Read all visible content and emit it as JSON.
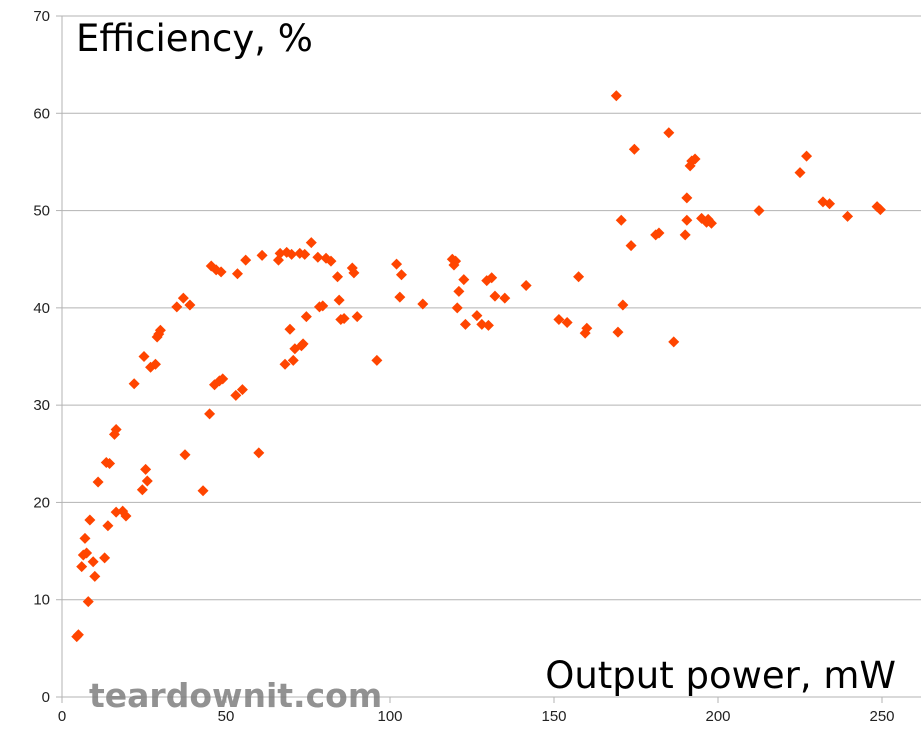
{
  "chart_data": {
    "type": "scatter",
    "title": "",
    "ylabel": "Efficiency, %",
    "xlabel": "Output power, mW",
    "xlim": [
      0,
      260
    ],
    "ylim": [
      0,
      70
    ],
    "x_ticks": [
      0,
      50,
      100,
      150,
      200,
      250
    ],
    "y_ticks": [
      0,
      10,
      20,
      30,
      40,
      50,
      60,
      70
    ],
    "grid": {
      "horizontal": true,
      "vertical": false
    },
    "legend": null,
    "marker": {
      "shape": "diamond",
      "color": "#ff4500"
    },
    "watermark": "teardownit.com",
    "series": [
      {
        "name": "Efficiency",
        "points": [
          [
            4.5,
            6.2
          ],
          [
            5,
            6.4
          ],
          [
            6,
            13.4
          ],
          [
            6.5,
            14.6
          ],
          [
            7,
            16.3
          ],
          [
            7.5,
            14.8
          ],
          [
            8,
            9.8
          ],
          [
            8.5,
            18.2
          ],
          [
            9.5,
            13.9
          ],
          [
            10,
            12.4
          ],
          [
            11,
            22.1
          ],
          [
            13,
            14.3
          ],
          [
            13.5,
            24.1
          ],
          [
            14,
            17.6
          ],
          [
            14.5,
            24.0
          ],
          [
            16,
            27.0
          ],
          [
            16.5,
            27.5
          ],
          [
            16.5,
            19.0
          ],
          [
            18.5,
            19.1
          ],
          [
            19.5,
            18.6
          ],
          [
            22,
            32.2
          ],
          [
            24.5,
            21.3
          ],
          [
            25,
            35.0
          ],
          [
            25.5,
            23.4
          ],
          [
            26,
            22.2
          ],
          [
            27,
            33.9
          ],
          [
            28.5,
            34.2
          ],
          [
            29,
            37.0
          ],
          [
            29.5,
            37.3
          ],
          [
            30,
            37.7
          ],
          [
            35,
            40.1
          ],
          [
            37,
            41.0
          ],
          [
            37.5,
            24.9
          ],
          [
            39,
            40.3
          ],
          [
            43,
            21.2
          ],
          [
            45,
            29.1
          ],
          [
            45.5,
            44.3
          ],
          [
            46.5,
            32.1
          ],
          [
            47,
            43.9
          ],
          [
            48,
            32.5
          ],
          [
            48.5,
            43.7
          ],
          [
            49,
            32.7
          ],
          [
            53,
            31.0
          ],
          [
            53.5,
            43.5
          ],
          [
            55,
            31.6
          ],
          [
            56,
            44.9
          ],
          [
            60,
            25.1
          ],
          [
            61,
            45.4
          ],
          [
            66,
            44.9
          ],
          [
            66.5,
            45.6
          ],
          [
            68,
            34.2
          ],
          [
            68.5,
            45.7
          ],
          [
            69.5,
            37.8
          ],
          [
            70,
            45.5
          ],
          [
            70.5,
            34.6
          ],
          [
            71,
            35.8
          ],
          [
            72.5,
            45.6
          ],
          [
            73,
            36.1
          ],
          [
            73.5,
            36.3
          ],
          [
            74,
            45.5
          ],
          [
            74.5,
            39.1
          ],
          [
            76,
            46.7
          ],
          [
            78,
            45.2
          ],
          [
            78.5,
            40.1
          ],
          [
            79.5,
            40.2
          ],
          [
            80.5,
            45.1
          ],
          [
            82,
            44.8
          ],
          [
            84,
            43.2
          ],
          [
            84.5,
            40.8
          ],
          [
            85,
            38.8
          ],
          [
            86,
            38.9
          ],
          [
            88.5,
            44.1
          ],
          [
            89,
            43.6
          ],
          [
            90,
            39.1
          ],
          [
            96,
            34.6
          ],
          [
            102,
            44.5
          ],
          [
            103,
            41.1
          ],
          [
            103.5,
            43.4
          ],
          [
            110,
            40.4
          ],
          [
            119,
            45.0
          ],
          [
            119.5,
            44.4
          ],
          [
            120,
            44.8
          ],
          [
            120.5,
            40.0
          ],
          [
            121,
            41.7
          ],
          [
            122.5,
            42.9
          ],
          [
            123,
            38.3
          ],
          [
            126.5,
            39.2
          ],
          [
            128,
            38.3
          ],
          [
            129.5,
            42.8
          ],
          [
            130,
            38.2
          ],
          [
            131,
            43.1
          ],
          [
            132,
            41.2
          ],
          [
            135,
            41.0
          ],
          [
            141.5,
            42.3
          ],
          [
            151.5,
            38.8
          ],
          [
            154,
            38.5
          ],
          [
            157.5,
            43.2
          ],
          [
            159.5,
            37.4
          ],
          [
            160,
            37.9
          ],
          [
            169,
            61.8
          ],
          [
            169.5,
            37.5
          ],
          [
            170.5,
            49.0
          ],
          [
            171,
            40.3
          ],
          [
            173.5,
            46.4
          ],
          [
            174.5,
            56.3
          ],
          [
            181,
            47.5
          ],
          [
            182,
            47.7
          ],
          [
            185,
            58.0
          ],
          [
            186.5,
            36.5
          ],
          [
            190,
            47.5
          ],
          [
            190.5,
            49.0
          ],
          [
            190.5,
            51.3
          ],
          [
            191.5,
            54.6
          ],
          [
            192,
            55.1
          ],
          [
            193,
            55.3
          ],
          [
            195,
            49.2
          ],
          [
            196.5,
            48.8
          ],
          [
            197,
            49.1
          ],
          [
            198,
            48.7
          ],
          [
            212.5,
            50.0
          ],
          [
            225,
            53.9
          ],
          [
            227,
            55.6
          ],
          [
            232,
            50.9
          ],
          [
            234,
            50.7
          ],
          [
            239.5,
            49.4
          ],
          [
            248.5,
            50.4
          ],
          [
            249.5,
            50.1
          ]
        ]
      }
    ]
  }
}
